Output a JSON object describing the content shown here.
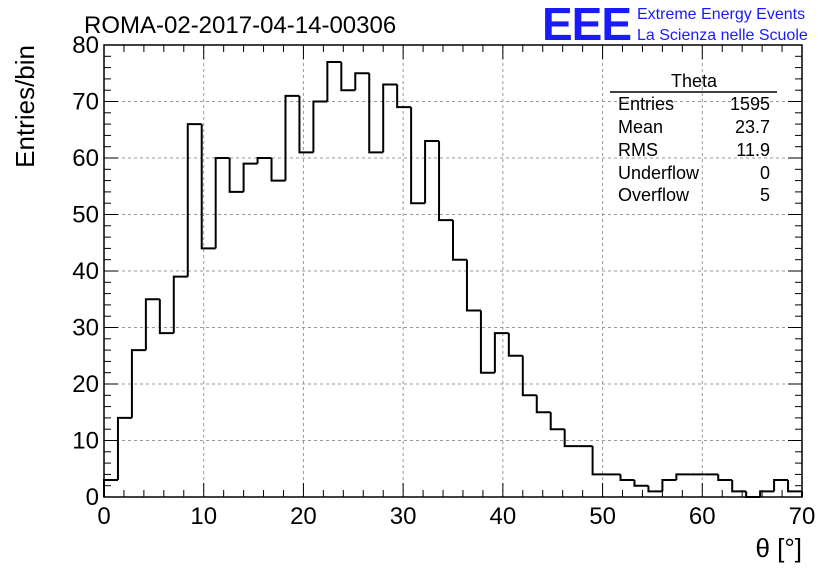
{
  "header": {
    "run_title": "ROMA-02-2017-04-14-00306",
    "logo_text": "EEE",
    "logo_line1": "Extreme Energy Events",
    "logo_line2": "La Scienza nelle Scuole",
    "logo_color": "#1a1aff"
  },
  "stats_box": {
    "title": "Theta",
    "rows": [
      {
        "label": "Entries",
        "value": "1595"
      },
      {
        "label": "Mean",
        "value": "23.7"
      },
      {
        "label": "RMS",
        "value": "11.9"
      },
      {
        "label": "Underflow",
        "value": "0"
      },
      {
        "label": "Overflow",
        "value": "5"
      }
    ]
  },
  "chart_data": {
    "type": "bar",
    "subtype": "step-histogram",
    "title": "ROMA-02-2017-04-14-00306",
    "xlabel": "θ [°]",
    "ylabel": "Entries/bin",
    "xlim": [
      0,
      70
    ],
    "ylim": [
      0,
      80
    ],
    "bin_width": 1.4,
    "x_ticks": [
      0,
      10,
      20,
      30,
      40,
      50,
      60,
      70
    ],
    "y_ticks": [
      0,
      10,
      20,
      30,
      40,
      50,
      60,
      70,
      80
    ],
    "grid": true,
    "line_color": "#000000",
    "values": [
      3,
      14,
      26,
      35,
      29,
      39,
      66,
      44,
      60,
      54,
      59,
      60,
      56,
      71,
      61,
      70,
      77,
      72,
      75,
      61,
      73,
      69,
      52,
      63,
      49,
      42,
      33,
      22,
      29,
      25,
      18,
      15,
      12,
      9,
      9,
      4,
      4,
      3,
      2,
      1,
      3,
      4,
      4,
      4,
      3,
      1,
      0,
      1,
      3,
      1
    ]
  }
}
